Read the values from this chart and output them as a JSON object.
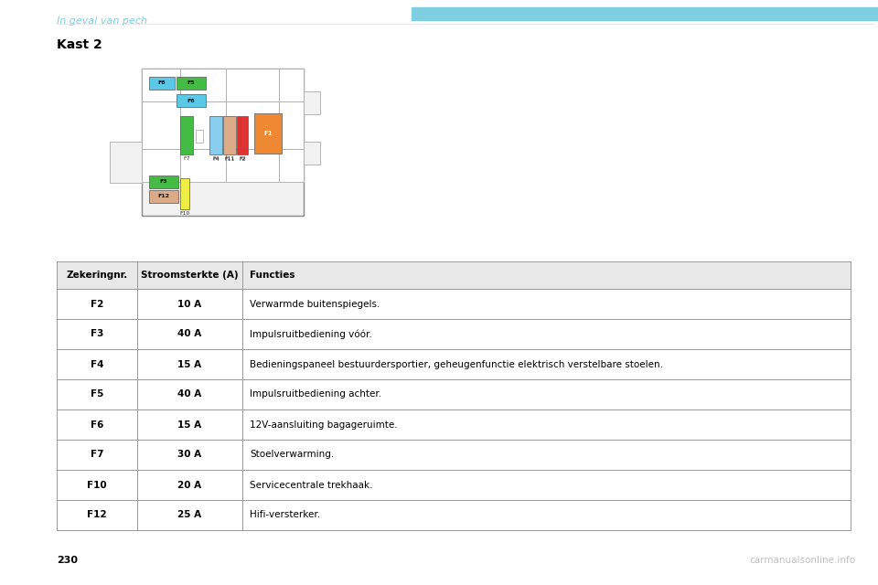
{
  "page_header": "In geval van pech",
  "section_title": "Kast 2",
  "page_number": "230",
  "header_bar_color": "#7ecfdf",
  "header_text_color": "#7ecfdf",
  "section_title_color": "#000000",
  "watermark_text": "carmanualsonline.info",
  "watermark_color": "#c0c0c0",
  "table_header": [
    "Zekeringnr.",
    "Stroomsterkte (A)",
    "Functies"
  ],
  "table_rows": [
    [
      "F2",
      "10 A",
      "Verwarmde buitenspiegels."
    ],
    [
      "F3",
      "40 A",
      "Impulsruitbediening vóór."
    ],
    [
      "F4",
      "15 A",
      "Bedieningspaneel bestuurdersportier, geheugenfunctie elektrisch verstelbare stoelen."
    ],
    [
      "F5",
      "40 A",
      "Impulsruitbediening achter."
    ],
    [
      "F6",
      "15 A",
      "12V-aansluiting bagageruimte."
    ],
    [
      "F7",
      "30 A",
      "Stoelverwarming."
    ],
    [
      "F10",
      "20 A",
      "Servicecentrale trekhaak."
    ],
    [
      "F12",
      "25 A",
      "Hifi-versterker."
    ]
  ],
  "bg_color": "#ffffff",
  "table_border_color": "#999999",
  "table_header_bg": "#e8e8e8",
  "fuse_colors": {
    "F8": "#5bc8e8",
    "F5": "#44bb44",
    "F6": "#5bc8e8",
    "F7": "#44bb44",
    "F4": "#88ccee",
    "F11": "#ddaa88",
    "F2": "#dd3333",
    "F1": "#ee8833",
    "F3": "#44bb44",
    "F10": "#eeee44",
    "F12": "#ddaa88"
  }
}
